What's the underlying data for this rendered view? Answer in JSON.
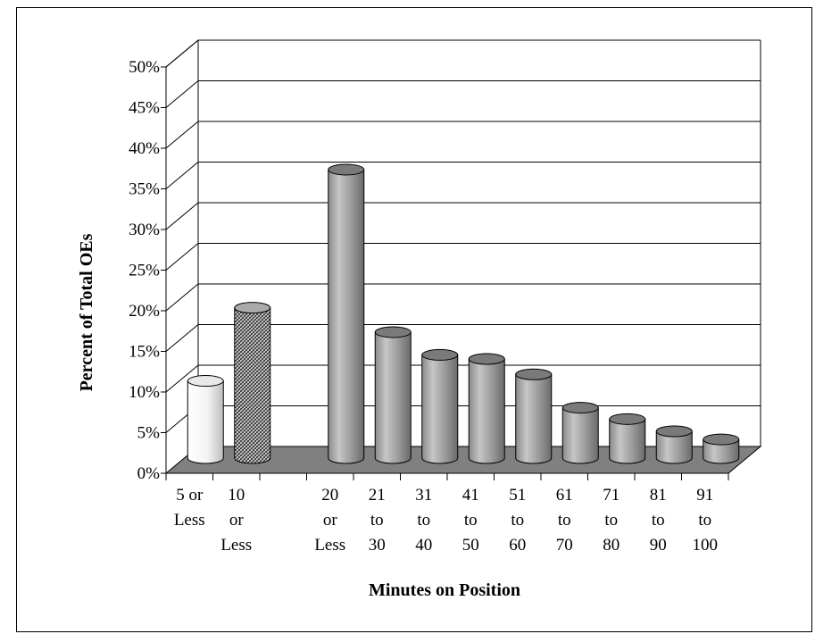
{
  "chart_data": {
    "type": "bar",
    "style": "3d-cylinder",
    "xlabel": "Minutes on Position",
    "ylabel": "Percent of Total OEs",
    "ylim": [
      0,
      50
    ],
    "y_ticks": [
      "0%",
      "5%",
      "10%",
      "15%",
      "20%",
      "25%",
      "30%",
      "35%",
      "40%",
      "45%",
      "50%"
    ],
    "grid": true,
    "categories": [
      [
        "5 or",
        "Less"
      ],
      [
        "10",
        "or",
        "Less"
      ],
      [
        "20",
        "or",
        "Less"
      ],
      [
        "21",
        "to",
        "30"
      ],
      [
        "31",
        "to",
        "40"
      ],
      [
        "41",
        "to",
        "50"
      ],
      [
        "51",
        "to",
        "60"
      ],
      [
        "61",
        "to",
        "70"
      ],
      [
        "71",
        "to",
        "80"
      ],
      [
        "81",
        "to",
        "90"
      ],
      [
        "91",
        "to",
        "100"
      ]
    ],
    "values": [
      9.5,
      18.5,
      35.5,
      15.5,
      12.7,
      12.2,
      10.3,
      6.2,
      4.8,
      3.3,
      2.3
    ],
    "fills": [
      "light-gradient",
      "crosshatch",
      "gray-gradient",
      "gray-gradient",
      "gray-gradient",
      "gray-gradient",
      "gray-gradient",
      "gray-gradient",
      "gray-gradient",
      "gray-gradient",
      "gray-gradient"
    ],
    "colors": {
      "bar": "#9a9a9a",
      "bar_light": "#f2f2f2",
      "floor": "#808080",
      "grid": "#000000"
    }
  }
}
